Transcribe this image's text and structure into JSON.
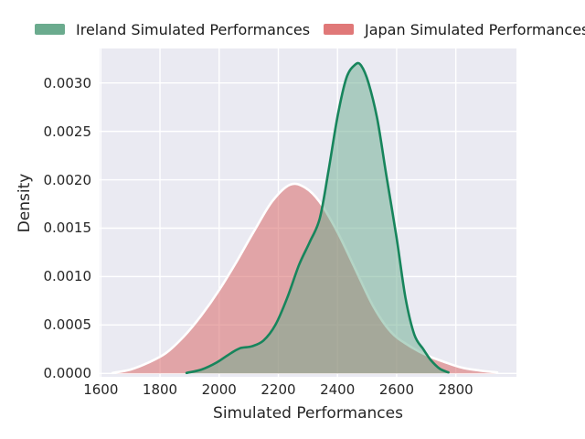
{
  "figure": {
    "background": "#ffffff"
  },
  "legend": {
    "items": [
      {
        "label": "Ireland Simulated Performances",
        "swatch_color": "#6bab8e"
      },
      {
        "label": "Japan Simulated Performances",
        "swatch_color": "#e07878"
      }
    ]
  },
  "colors": {
    "plot_background": "#eaeaf2",
    "grid": "#ffffff",
    "tick_text": "#262626",
    "ireland_line": "#17855c",
    "ireland_fill": "rgba(106,171,141,0.5)",
    "japan_line": "#ffffff",
    "japan_fill": "rgba(217,106,106,0.55)"
  },
  "chart_data": {
    "type": "area",
    "subtype": "kde-density",
    "title": "",
    "xlabel": "Simulated Performances",
    "ylabel": "Density",
    "grid": true,
    "legend_position": "top-outside",
    "xlim": [
      1596,
      3005
    ],
    "ylim": [
      -3.5e-05,
      0.003356
    ],
    "x_tick_values": [
      1600,
      1800,
      2000,
      2200,
      2400,
      2600,
      2800
    ],
    "x_tick_labels": [
      "1600",
      "1800",
      "2000",
      "2200",
      "2400",
      "2600",
      "2800"
    ],
    "y_tick_values": [
      0.0,
      0.0005,
      0.001,
      0.0015,
      0.002,
      0.0025,
      0.003
    ],
    "y_tick_labels": [
      "0.0000",
      "0.0005",
      "0.0010",
      "0.0015",
      "0.0020",
      "0.0025",
      "0.0030"
    ],
    "series": [
      {
        "id": "ireland",
        "name": "Ireland Simulated Performances",
        "peak": {
          "x": 2465,
          "density": 0.0032
        },
        "points": [
          [
            1890,
            5e-06
          ],
          [
            1940,
            4e-05
          ],
          [
            1990,
            0.00011
          ],
          [
            2030,
            0.00019
          ],
          [
            2070,
            0.00026
          ],
          [
            2110,
            0.00028
          ],
          [
            2150,
            0.00034
          ],
          [
            2190,
            0.0005
          ],
          [
            2230,
            0.00078
          ],
          [
            2270,
            0.00112
          ],
          [
            2305,
            0.00135
          ],
          [
            2340,
            0.0016
          ],
          [
            2370,
            0.0021
          ],
          [
            2400,
            0.00265
          ],
          [
            2430,
            0.00305
          ],
          [
            2460,
            0.00319
          ],
          [
            2480,
            0.00318
          ],
          [
            2505,
            0.003
          ],
          [
            2535,
            0.00262
          ],
          [
            2565,
            0.00205
          ],
          [
            2600,
            0.0014
          ],
          [
            2630,
            0.00078
          ],
          [
            2660,
            0.0004
          ],
          [
            2690,
            0.00025
          ],
          [
            2715,
            0.00014
          ],
          [
            2745,
            5e-05
          ],
          [
            2775,
            1e-05
          ]
        ]
      },
      {
        "id": "japan",
        "name": "Japan Simulated Performances",
        "peak": {
          "x": 2250,
          "density": 0.00196
        },
        "points": [
          [
            1640,
            5e-06
          ],
          [
            1700,
            4e-05
          ],
          [
            1760,
            0.00011
          ],
          [
            1820,
            0.00021
          ],
          [
            1880,
            0.00038
          ],
          [
            1940,
            0.0006
          ],
          [
            2000,
            0.00086
          ],
          [
            2060,
            0.00116
          ],
          [
            2120,
            0.00148
          ],
          [
            2180,
            0.00178
          ],
          [
            2240,
            0.00195
          ],
          [
            2290,
            0.00192
          ],
          [
            2340,
            0.00177
          ],
          [
            2400,
            0.00146
          ],
          [
            2460,
            0.00108
          ],
          [
            2520,
            0.0007
          ],
          [
            2580,
            0.00043
          ],
          [
            2640,
            0.00029
          ],
          [
            2700,
            0.00019
          ],
          [
            2760,
            0.00012
          ],
          [
            2820,
            6e-05
          ],
          [
            2880,
            3e-05
          ],
          [
            2940,
            1e-05
          ]
        ]
      }
    ]
  }
}
